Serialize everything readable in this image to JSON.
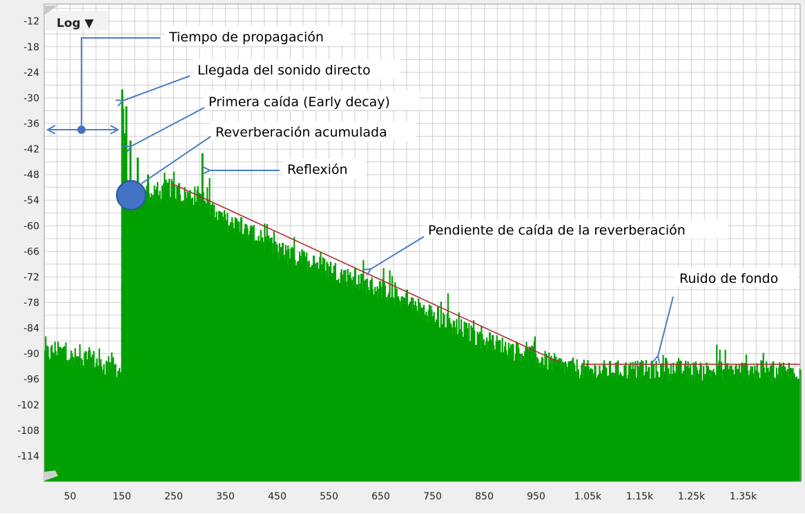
{
  "chart_data": {
    "type": "bar",
    "title": "",
    "xlabel": "",
    "ylabel": "",
    "scale_button_label": "Log ▼",
    "xlim": [
      0,
      1460
    ],
    "ylim": [
      -120,
      -8
    ],
    "yticks": [
      -12,
      -18,
      -24,
      -30,
      -36,
      -42,
      -48,
      -54,
      -60,
      -66,
      -72,
      -78,
      -84,
      -90,
      -96,
      -102,
      -108,
      -114
    ],
    "xtick_labels": [
      "50",
      "150",
      "250",
      "350",
      "450",
      "550",
      "650",
      "750",
      "850",
      "950",
      "1.05k",
      "1.15k",
      "1.25k",
      "1.35k"
    ],
    "xticks": [
      50,
      150,
      250,
      350,
      450,
      550,
      650,
      750,
      850,
      950,
      1050,
      1150,
      1250,
      1350
    ],
    "grid": true,
    "bar_color": "#00a000",
    "floor_db": -120,
    "series": [
      {
        "envelope_points": [
          [
            0,
            -90
          ],
          [
            10,
            -90
          ],
          [
            20,
            -89
          ],
          [
            30,
            -90
          ],
          [
            40,
            -89
          ],
          [
            50,
            -91
          ],
          [
            60,
            -91
          ],
          [
            70,
            -92
          ],
          [
            80,
            -91
          ],
          [
            90,
            -91
          ],
          [
            100,
            -92
          ],
          [
            110,
            -93
          ],
          [
            120,
            -93
          ],
          [
            130,
            -92
          ],
          [
            140,
            -94
          ],
          [
            148,
            -94
          ],
          [
            150,
            -30
          ],
          [
            152,
            -36
          ],
          [
            155,
            -44
          ],
          [
            160,
            -53
          ],
          [
            170,
            -52
          ],
          [
            180,
            -53
          ],
          [
            190,
            -52
          ],
          [
            200,
            -53
          ],
          [
            220,
            -53
          ],
          [
            240,
            -51
          ],
          [
            260,
            -53
          ],
          [
            280,
            -53
          ],
          [
            300,
            -53
          ],
          [
            320,
            -56
          ],
          [
            350,
            -59
          ],
          [
            400,
            -62
          ],
          [
            450,
            -66
          ],
          [
            500,
            -68
          ],
          [
            550,
            -70
          ],
          [
            600,
            -73
          ],
          [
            650,
            -75
          ],
          [
            700,
            -78
          ],
          [
            750,
            -81
          ],
          [
            800,
            -84
          ],
          [
            850,
            -87
          ],
          [
            900,
            -89
          ],
          [
            950,
            -91
          ],
          [
            1000,
            -93
          ],
          [
            1050,
            -94
          ],
          [
            1100,
            -94
          ],
          [
            1150,
            -94
          ],
          [
            1200,
            -94
          ],
          [
            1250,
            -94
          ],
          [
            1300,
            -94
          ],
          [
            1350,
            -94
          ],
          [
            1400,
            -94
          ],
          [
            1460,
            -94
          ]
        ],
        "peaks": [
          [
            150,
            -28
          ],
          [
            158,
            -32
          ],
          [
            166,
            -40
          ],
          [
            180,
            -44
          ],
          [
            200,
            -48
          ],
          [
            260,
            -50
          ],
          [
            305,
            -43
          ],
          [
            380,
            -58
          ],
          [
            460,
            -64
          ],
          [
            520,
            -67
          ],
          [
            600,
            -70
          ],
          [
            700,
            -75
          ],
          [
            760,
            -79
          ],
          [
            860,
            -85
          ],
          [
            1000,
            -92
          ],
          [
            1200,
            -91
          ]
        ]
      }
    ],
    "lines": [
      {
        "name": "reverb-slope-line",
        "x": [
          245,
          995
        ],
        "y": [
          -50,
          -92
        ],
        "color": "#b03030"
      },
      {
        "name": "noise-floor-line",
        "x": [
          1040,
          1460
        ],
        "y": [
          -92.5,
          -92.5
        ],
        "color": "#b03030"
      }
    ],
    "annotations": [
      {
        "id": "propagation",
        "label": "Tiempo de propagación"
      },
      {
        "id": "direct",
        "label": "Llegada del sonido directo"
      },
      {
        "id": "early",
        "label": "Primera caída (Early decay)"
      },
      {
        "id": "accum",
        "label": "Reverberación acumulada"
      },
      {
        "id": "reflex",
        "label": "Reflexión"
      },
      {
        "id": "slope",
        "label": "Pendiente de caída de la reverberación"
      },
      {
        "id": "noise",
        "label": "Ruido de fondo"
      }
    ],
    "colors": {
      "annotation_arrow": "#4a7cc6",
      "marker_fill": "#4472c4",
      "grid": "#cfcfcf",
      "plot_bg": "#ffffff",
      "frame_bg": "#efefef"
    }
  }
}
